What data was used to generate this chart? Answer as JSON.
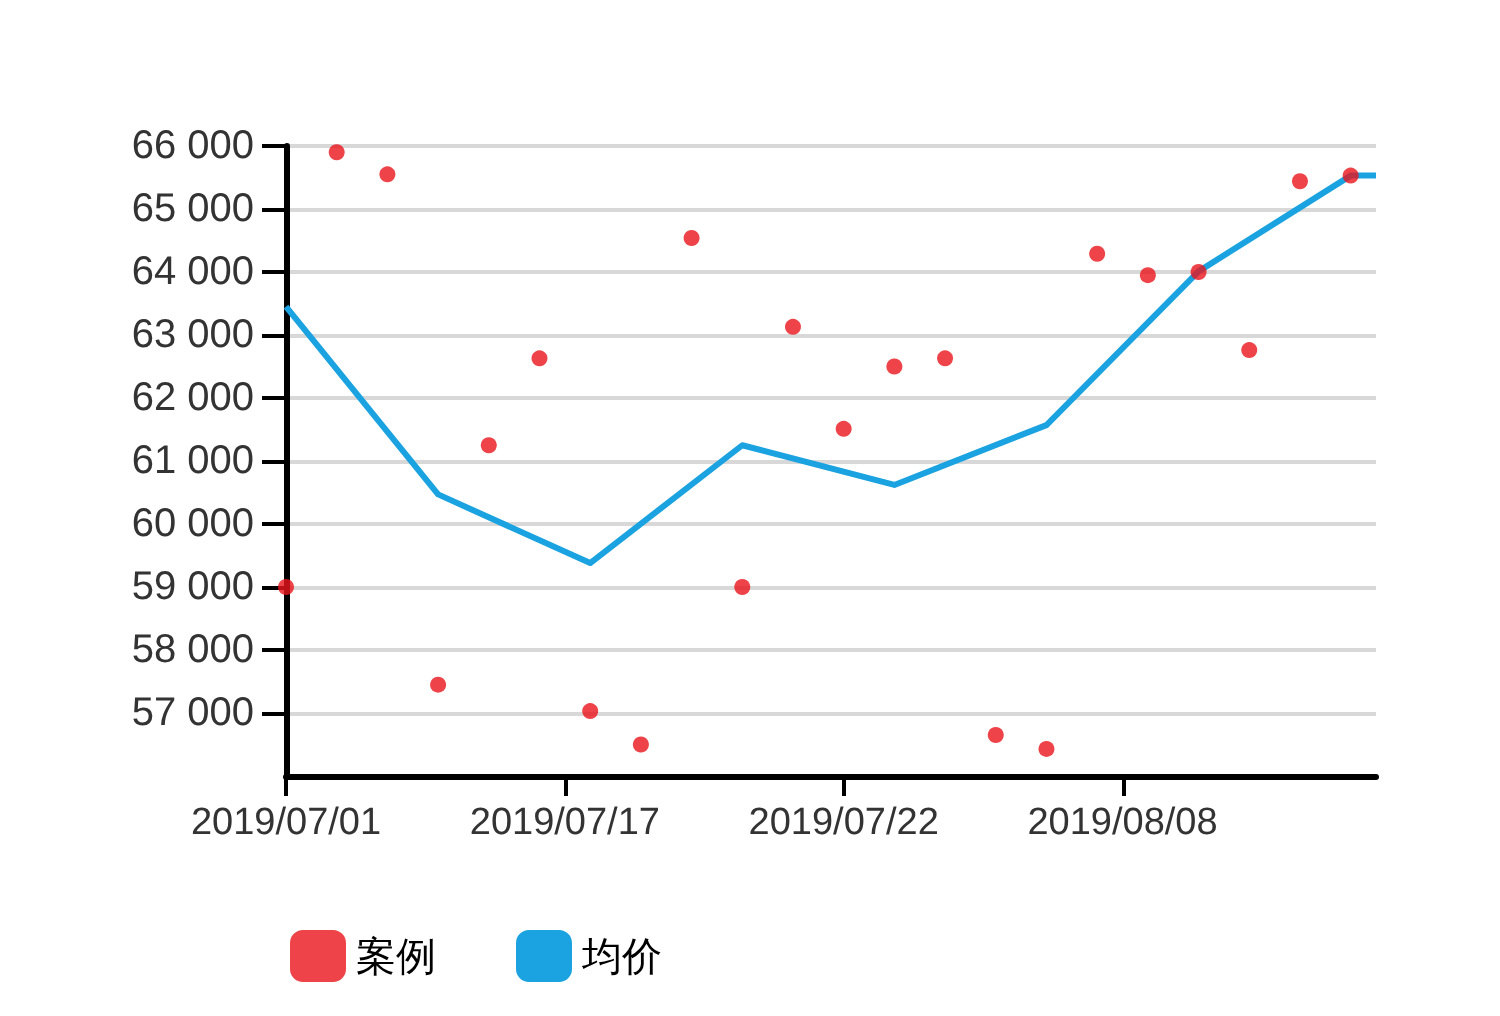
{
  "chart_data": {
    "type": "scatter",
    "categories": [
      "2019/07/01",
      null,
      null,
      null,
      null,
      null,
      null,
      null,
      null,
      null,
      null,
      "2019/07/17",
      null,
      null,
      null,
      null,
      null,
      null,
      null,
      null,
      null,
      null,
      "2019/07/22",
      null,
      null,
      null,
      null,
      null,
      null,
      null,
      null,
      null,
      null,
      "2019/08/08",
      null,
      null,
      null,
      null,
      null,
      null,
      null,
      null,
      null,
      null
    ],
    "series": [
      {
        "name": "案例",
        "marker": "circle",
        "color": "#e8141b",
        "values": [
          59000,
          null,
          65900,
          null,
          65550,
          null,
          57450,
          null,
          61250,
          null,
          62630,
          null,
          57030,
          null,
          56500,
          null,
          64540,
          null,
          59000,
          null,
          63130,
          null,
          61510,
          null,
          62500,
          null,
          62630,
          null,
          56650,
          null,
          56430,
          null,
          64290,
          null,
          63950,
          null,
          64000,
          null,
          62760,
          null,
          65440,
          null,
          65530,
          null
        ]
      },
      {
        "name": "均价",
        "type": "line",
        "marker": "none",
        "color": "#1aa3e0",
        "values": [
          63450,
          null,
          null,
          null,
          null,
          null,
          60470,
          null,
          null,
          null,
          null,
          null,
          59380,
          null,
          null,
          null,
          null,
          null,
          61250,
          null,
          null,
          null,
          null,
          null,
          60620,
          null,
          null,
          null,
          null,
          null,
          61570,
          null,
          null,
          null,
          null,
          null,
          64010,
          null,
          null,
          null,
          null,
          null,
          65530,
          65530
        ]
      }
    ],
    "ylim": [
      56000,
      66000
    ],
    "yticks": [
      57000,
      58000,
      59000,
      60000,
      61000,
      62000,
      63000,
      64000,
      65000,
      66000
    ],
    "grid": "y",
    "legend": "bottom left"
  }
}
